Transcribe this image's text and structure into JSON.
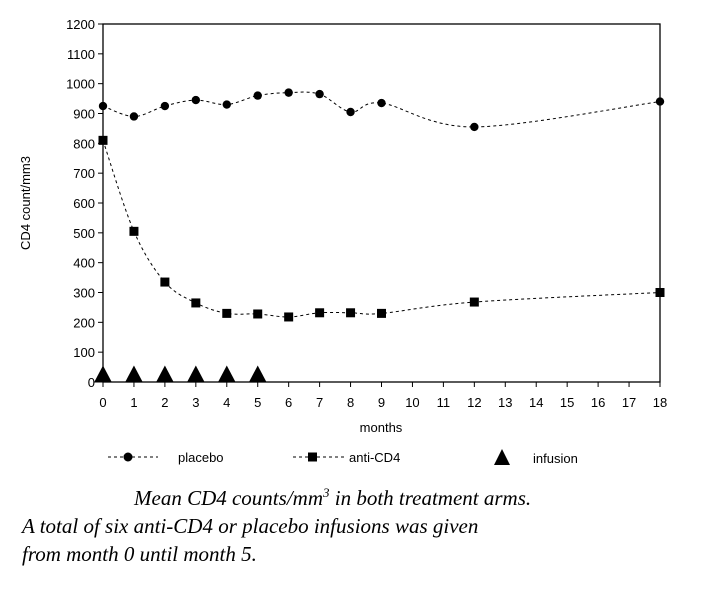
{
  "chart_data": {
    "type": "line",
    "title": "",
    "xlabel": "months",
    "ylabel": "CD4 count/mm3",
    "ylim": [
      0,
      1200
    ],
    "y_ticks": [
      0,
      100,
      200,
      300,
      400,
      500,
      600,
      700,
      800,
      900,
      1000,
      1100,
      1200
    ],
    "x_ticks": [
      "0",
      "1",
      "2",
      "3",
      "4",
      "5",
      "6",
      "7",
      "8",
      "9",
      "10",
      "11",
      "12",
      "13",
      "14",
      "15",
      "16",
      "17",
      "18"
    ],
    "series": [
      {
        "name": "placebo",
        "marker": "circle",
        "x": [
          0,
          1,
          2,
          3,
          4,
          5,
          6,
          7,
          8,
          9,
          12,
          18
        ],
        "values": [
          925,
          890,
          925,
          945,
          930,
          960,
          970,
          965,
          905,
          935,
          855,
          940
        ]
      },
      {
        "name": "anti-CD4",
        "marker": "square",
        "x": [
          0,
          1,
          2,
          3,
          4,
          5,
          6,
          7,
          8,
          9,
          12,
          18
        ],
        "values": [
          810,
          505,
          335,
          265,
          230,
          228,
          218,
          232,
          232,
          230,
          268,
          300
        ]
      }
    ],
    "infusions": {
      "name": "infusion",
      "marker": "triangle",
      "x": [
        0,
        1,
        2,
        3,
        4,
        5
      ],
      "values": [
        25,
        25,
        25,
        25,
        25,
        25
      ]
    },
    "legend": [
      "placebo",
      "anti-CD4",
      "infusion"
    ],
    "legend_position": "bottom"
  },
  "caption": {
    "line1_pre": "Mean CD4 counts/mm",
    "line1_sup": "3",
    "line1_post": " in both treatment arms.",
    "line2": "A total of six anti-CD4 or placebo infusions was given",
    "line3": "from month 0 until month 5."
  }
}
